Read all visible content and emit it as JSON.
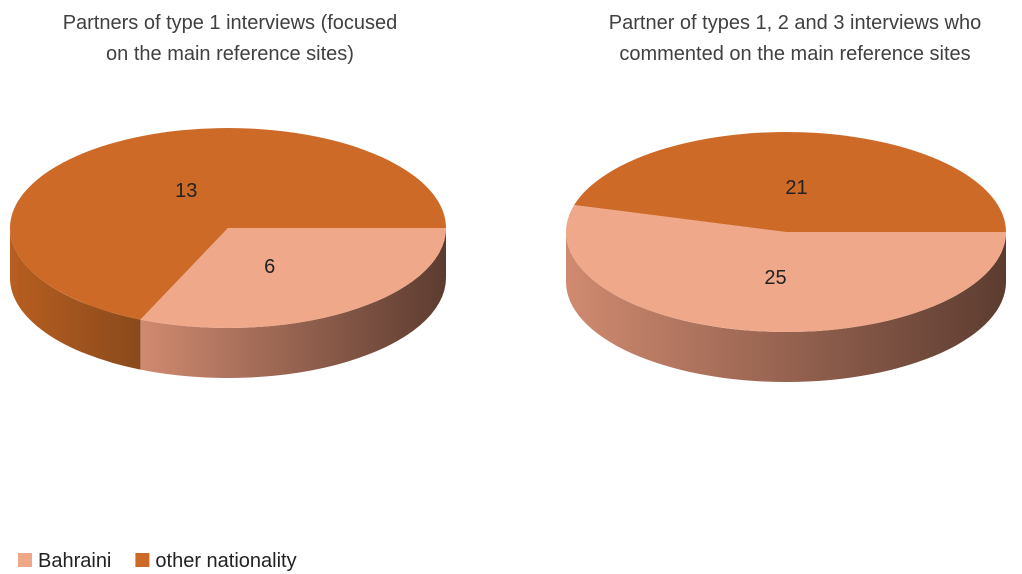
{
  "chart_data": [
    {
      "type": "pie",
      "title": "Partners of type 1 interviews (focused on the main reference sites)",
      "categories": [
        "Bahraini",
        "other nationality"
      ],
      "values": [
        6,
        13
      ],
      "colors": [
        "#f0a88a",
        "#cd6a28"
      ]
    },
    {
      "type": "pie",
      "title": "Partner of types 1, 2 and 3 interviews who commented on the main reference sites",
      "categories": [
        "Bahraini",
        "other nationality"
      ],
      "values": [
        25,
        21
      ],
      "colors": [
        "#f0a88a",
        "#cd6a28"
      ]
    }
  ]
}
